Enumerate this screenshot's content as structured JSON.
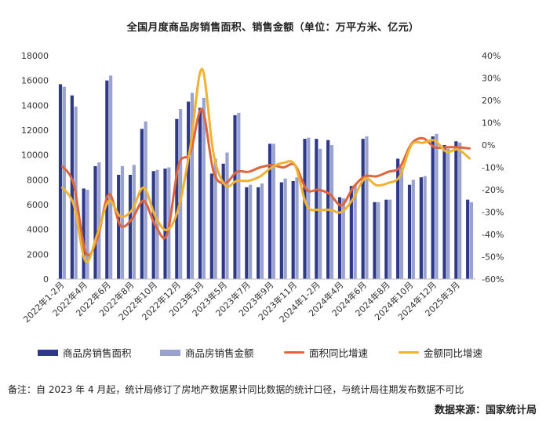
{
  "chart_data": {
    "type": "bar",
    "title": "全国月度商品房销售面积、销售金额（单位：万平方米、亿元）",
    "x": [
      "2022年1-2月",
      "2022年3月",
      "2022年4月",
      "2022年5月",
      "2022年6月",
      "2022年7月",
      "2022年8月",
      "2022年9月",
      "2022年10月",
      "2022年11月",
      "2022年12月",
      "2023年1-2月",
      "2023年3月",
      "2023年4月",
      "2023年5月",
      "2023年6月",
      "2023年7月",
      "2023年8月",
      "2023年9月",
      "2023年10月",
      "2023年11月",
      "2023年12月",
      "2024年1-2月",
      "2024年3月",
      "2024年4月",
      "2024年5月",
      "2024年6月",
      "2024年7月",
      "2024年8月",
      "2024年9月",
      "2024年10月",
      "2024年11月",
      "2024年12月",
      "2025年1-2月",
      "2025年3月",
      "2025年4月"
    ],
    "x_tick_labels": [
      "2022年1-2月",
      "2022年4月",
      "2022年6月",
      "2022年8月",
      "2022年10月",
      "2022年12月",
      "2023年3月",
      "2023年5月",
      "2023年7月",
      "2023年9月",
      "2023年11月",
      "2024年1-2月",
      "2024年4月",
      "2024年6月",
      "2024年8月",
      "2024年10月",
      "2024年12月",
      "2025年3月"
    ],
    "ylim_left": [
      0,
      18000
    ],
    "yticks_left": [
      "0",
      "2000",
      "4000",
      "6000",
      "8000",
      "10000",
      "12000",
      "14000",
      "16000",
      "18000"
    ],
    "ylim_right": [
      -60,
      40
    ],
    "yticks_right": [
      "-60%",
      "-50%",
      "-40%",
      "-30%",
      "-20%",
      "-10%",
      "0%",
      "10%",
      "20%",
      "30%",
      "40%"
    ],
    "series": [
      {
        "name": "商品房销售面积",
        "type": "bar",
        "axis": "left",
        "color": "#2e3a87",
        "values": [
          15700,
          14800,
          7300,
          9100,
          16000,
          8400,
          8400,
          12100,
          8700,
          8900,
          12900,
          14300,
          13800,
          8500,
          9300,
          13200,
          7400,
          7400,
          10900,
          7800,
          7900,
          11300,
          11300,
          11200,
          6600,
          7500,
          11300,
          6200,
          6400,
          9700,
          7600,
          8200,
          11500,
          10800,
          11100,
          6400
        ]
      },
      {
        "name": "商品房销售金额",
        "type": "bar",
        "axis": "left",
        "color": "#9aa3cf",
        "values": [
          15500,
          13900,
          7200,
          9400,
          16400,
          9100,
          9200,
          12700,
          8800,
          9000,
          13700,
          15000,
          14600,
          9700,
          10200,
          13400,
          7600,
          7700,
          10900,
          8100,
          8200,
          11400,
          10500,
          10800,
          6500,
          7600,
          11500,
          6200,
          6400,
          9000,
          8000,
          8300,
          11700,
          10500,
          11000,
          6200
        ]
      },
      {
        "name": "面积同比增速",
        "type": "line",
        "axis": "right",
        "color": "#e0643c",
        "values": [
          -9.5,
          -18,
          -48,
          -42,
          -22,
          -36,
          -33,
          -25,
          -36,
          -40,
          -9,
          -3.5,
          16,
          -12,
          -17,
          -12,
          -12,
          -10,
          -9,
          -10,
          -9,
          -20,
          -20,
          -22,
          -27,
          -19,
          -14,
          -14,
          -12,
          -10,
          0.5,
          3,
          -1,
          -1,
          -1,
          -1.5
        ]
      },
      {
        "name": "金额同比增速",
        "type": "line",
        "axis": "right",
        "color": "#f0b232",
        "values": [
          -19,
          -27,
          -52,
          -40,
          -25,
          -32,
          -29,
          -19,
          -32,
          -38,
          -28,
          -1,
          34,
          -4,
          -18,
          -16,
          -16,
          -14,
          -10,
          -8,
          -9,
          -27,
          -29,
          -29,
          -30,
          -24,
          -15,
          -18,
          -17,
          -14,
          0,
          1,
          2,
          -3,
          -2,
          -6
        ]
      }
    ]
  },
  "legend": {
    "area_bar": "商品房销售面积",
    "amount_bar": "商品房销售金额",
    "area_line": "面积同比增速",
    "amount_line": "金额同比增速"
  },
  "note": "备注：自 2023 年 4 月起，统计局修订了房地产数据累计同比数据的统计口径，与统计局往期发布数据不可比",
  "source": "数据来源：国家统计局",
  "colors": {
    "area_bar": "#2e3a87",
    "amount_bar": "#9aa3cf",
    "area_line": "#e0643c",
    "amount_line": "#f0b232"
  }
}
